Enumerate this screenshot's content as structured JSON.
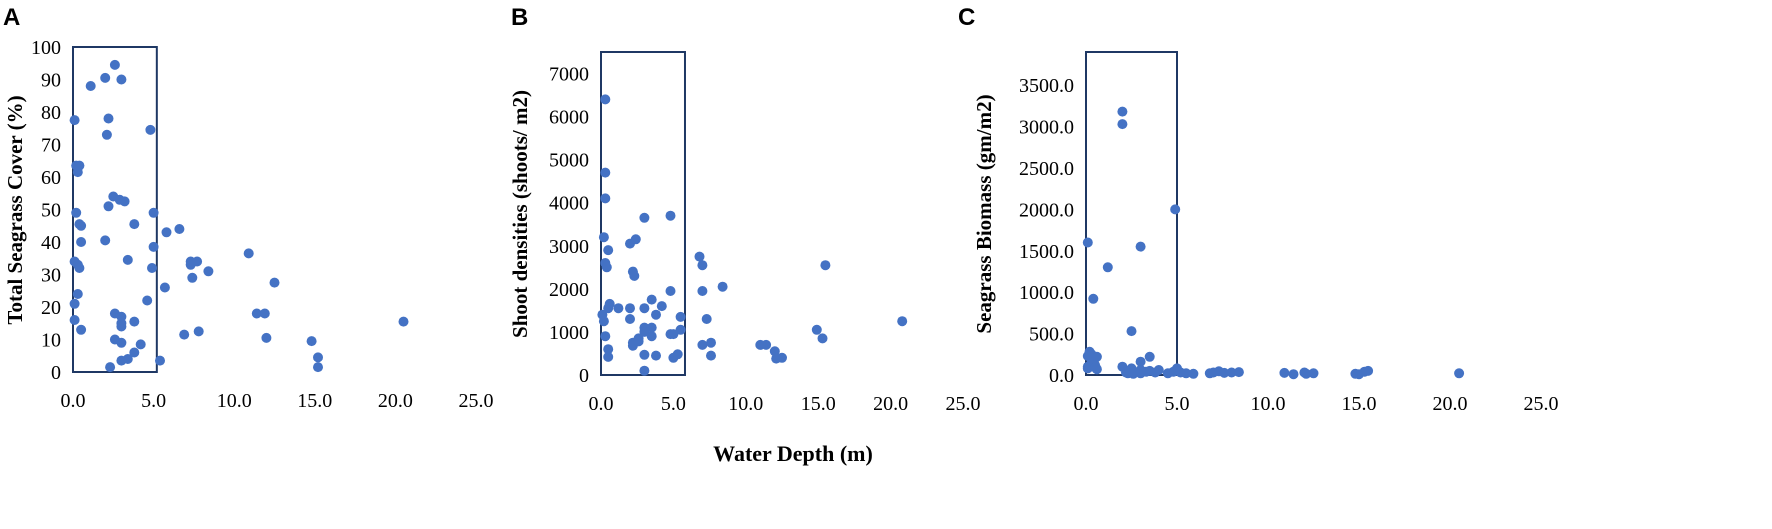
{
  "shared_xlabel": "Water Depth (m)",
  "colors": {
    "points": "#4472c4",
    "box": "#1f3864"
  },
  "chart_data": [
    {
      "type": "scatter",
      "panel": "A",
      "title": "",
      "xlabel": "Water Depth (m)",
      "ylabel": "Total Seagrass Cover (%)",
      "xlim": [
        0,
        25
      ],
      "ylim": [
        0,
        100
      ],
      "x_ticks": [
        "0.0",
        "5.0",
        "10.0",
        "15.0",
        "20.0",
        "25.0"
      ],
      "y_ticks": [
        "0",
        "10",
        "20",
        "30",
        "40",
        "50",
        "60",
        "70",
        "80",
        "90",
        "100"
      ],
      "highlight_box": {
        "x": [
          0,
          5.2
        ],
        "y": [
          0,
          100
        ]
      },
      "points": [
        [
          0.1,
          77.5
        ],
        [
          0.1,
          34
        ],
        [
          0.1,
          21
        ],
        [
          0.1,
          16
        ],
        [
          0.2,
          63.5
        ],
        [
          0.2,
          49
        ],
        [
          0.3,
          61.5
        ],
        [
          0.3,
          33
        ],
        [
          0.3,
          24
        ],
        [
          0.4,
          63.5
        ],
        [
          0.4,
          45.5
        ],
        [
          0.4,
          32
        ],
        [
          0.5,
          40
        ],
        [
          0.5,
          45
        ],
        [
          0.5,
          13
        ],
        [
          1.1,
          88
        ],
        [
          2.0,
          90.5
        ],
        [
          2.0,
          40.5
        ],
        [
          2.1,
          73
        ],
        [
          2.2,
          78
        ],
        [
          2.2,
          51
        ],
        [
          2.3,
          1.5
        ],
        [
          2.6,
          94.5
        ],
        [
          2.5,
          54
        ],
        [
          2.6,
          18
        ],
        [
          2.6,
          10
        ],
        [
          2.9,
          53
        ],
        [
          3.0,
          90
        ],
        [
          3.0,
          17
        ],
        [
          3.0,
          15
        ],
        [
          3.0,
          14
        ],
        [
          3.0,
          9
        ],
        [
          3.0,
          3.5
        ],
        [
          3.2,
          52.5
        ],
        [
          3.4,
          34.5
        ],
        [
          3.4,
          4
        ],
        [
          3.8,
          45.5
        ],
        [
          3.8,
          15.5
        ],
        [
          3.8,
          6
        ],
        [
          4.2,
          8.5
        ],
        [
          4.6,
          22
        ],
        [
          4.8,
          74.5
        ],
        [
          4.9,
          32
        ],
        [
          5.0,
          49
        ],
        [
          5.0,
          38.5
        ],
        [
          5.4,
          3.5
        ],
        [
          5.7,
          26
        ],
        [
          5.8,
          43
        ],
        [
          6.6,
          44
        ],
        [
          6.9,
          11.5
        ],
        [
          7.3,
          34
        ],
        [
          7.3,
          33
        ],
        [
          7.4,
          29
        ],
        [
          7.7,
          34
        ],
        [
          7.8,
          12.5
        ],
        [
          8.4,
          31
        ],
        [
          10.9,
          36.5
        ],
        [
          11.4,
          18
        ],
        [
          11.9,
          18
        ],
        [
          12.0,
          10.5
        ],
        [
          12.5,
          27.5
        ],
        [
          14.8,
          9.5
        ],
        [
          15.2,
          4.5
        ],
        [
          15.2,
          1.5
        ],
        [
          20.5,
          15.5
        ]
      ]
    },
    {
      "type": "scatter",
      "panel": "B",
      "title": "",
      "xlabel": "Water Depth (m)",
      "ylabel": "Shoot densities (shoots/ m2)",
      "xlim": [
        0,
        25
      ],
      "ylim": [
        0,
        7500
      ],
      "x_ticks": [
        "0.0",
        "5.0",
        "10.0",
        "15.0",
        "20.0",
        "25.0"
      ],
      "y_ticks": [
        "0",
        "1000",
        "2000",
        "3000",
        "4000",
        "5000",
        "6000",
        "7000"
      ],
      "highlight_box": {
        "x": [
          0,
          5.8
        ],
        "y": [
          0,
          7500
        ]
      },
      "points": [
        [
          0.1,
          1400
        ],
        [
          0.2,
          3200
        ],
        [
          0.2,
          1250
        ],
        [
          0.3,
          6400
        ],
        [
          0.3,
          4700
        ],
        [
          0.3,
          4100
        ],
        [
          0.3,
          2600
        ],
        [
          0.3,
          900
        ],
        [
          0.4,
          2500
        ],
        [
          0.5,
          2900
        ],
        [
          0.5,
          1550
        ],
        [
          0.6,
          1650
        ],
        [
          0.5,
          600
        ],
        [
          0.5,
          420
        ],
        [
          1.2,
          1550
        ],
        [
          2.0,
          3050
        ],
        [
          2.0,
          1550
        ],
        [
          2.0,
          1300
        ],
        [
          2.2,
          2400
        ],
        [
          2.4,
          3150
        ],
        [
          2.3,
          2300
        ],
        [
          2.2,
          750
        ],
        [
          2.2,
          680
        ],
        [
          2.6,
          850
        ],
        [
          2.6,
          780
        ],
        [
          3.0,
          3650
        ],
        [
          3.0,
          1550
        ],
        [
          3.0,
          1100
        ],
        [
          3.0,
          1000
        ],
        [
          3.0,
          470
        ],
        [
          3.0,
          100
        ],
        [
          3.5,
          1750
        ],
        [
          3.5,
          900
        ],
        [
          3.5,
          1100
        ],
        [
          3.8,
          1400
        ],
        [
          3.8,
          450
        ],
        [
          4.2,
          1600
        ],
        [
          4.8,
          3700
        ],
        [
          4.8,
          1950
        ],
        [
          4.8,
          950
        ],
        [
          5.0,
          950
        ],
        [
          5.0,
          400
        ],
        [
          5.3,
          480
        ],
        [
          5.5,
          1350
        ],
        [
          5.5,
          1050
        ],
        [
          6.8,
          2750
        ],
        [
          7.0,
          2550
        ],
        [
          7.0,
          1950
        ],
        [
          7.0,
          700
        ],
        [
          7.3,
          1300
        ],
        [
          7.6,
          750
        ],
        [
          7.6,
          450
        ],
        [
          8.4,
          2050
        ],
        [
          11.0,
          700
        ],
        [
          11.4,
          700
        ],
        [
          12.0,
          550
        ],
        [
          12.1,
          380
        ],
        [
          12.5,
          400
        ],
        [
          14.9,
          1050
        ],
        [
          15.3,
          850
        ],
        [
          15.5,
          2550
        ],
        [
          20.8,
          1250
        ]
      ]
    },
    {
      "type": "scatter",
      "panel": "C",
      "title": "",
      "xlabel": "Water Depth (m)",
      "ylabel": "Seagrass Biomass (gm/m2)",
      "xlim": [
        0,
        25
      ],
      "ylim": [
        0,
        3900
      ],
      "x_ticks": [
        "0.0",
        "5.0",
        "10.0",
        "15.0",
        "20.0",
        "25.0"
      ],
      "y_ticks": [
        "0.0",
        "500.0",
        "1000.0",
        "1500.0",
        "2000.0",
        "2500.0",
        "3000.0",
        "3500.0"
      ],
      "highlight_box": {
        "x": [
          0,
          5.0
        ],
        "y": [
          0,
          3900
        ]
      },
      "points": [
        [
          0.1,
          1600
        ],
        [
          0.1,
          230
        ],
        [
          0.1,
          100
        ],
        [
          0.1,
          80
        ],
        [
          0.2,
          280
        ],
        [
          0.3,
          250
        ],
        [
          0.3,
          200
        ],
        [
          0.3,
          150
        ],
        [
          0.4,
          920
        ],
        [
          0.5,
          120
        ],
        [
          0.5,
          90
        ],
        [
          0.6,
          220
        ],
        [
          0.6,
          70
        ],
        [
          1.2,
          1300
        ],
        [
          2.0,
          3180
        ],
        [
          2.0,
          3030
        ],
        [
          2.0,
          100
        ],
        [
          2.2,
          30
        ],
        [
          2.3,
          20
        ],
        [
          2.5,
          530
        ],
        [
          2.5,
          80
        ],
        [
          2.6,
          40
        ],
        [
          2.6,
          15
        ],
        [
          3.0,
          1550
        ],
        [
          3.0,
          160
        ],
        [
          3.0,
          60
        ],
        [
          3.0,
          20
        ],
        [
          3.3,
          40
        ],
        [
          3.5,
          220
        ],
        [
          3.5,
          50
        ],
        [
          3.8,
          30
        ],
        [
          4.0,
          60
        ],
        [
          4.5,
          20
        ],
        [
          4.8,
          40
        ],
        [
          4.9,
          2000
        ],
        [
          5.0,
          80
        ],
        [
          5.2,
          30
        ],
        [
          5.5,
          20
        ],
        [
          5.9,
          15
        ],
        [
          6.8,
          20
        ],
        [
          7.0,
          30
        ],
        [
          7.3,
          45
        ],
        [
          7.6,
          25
        ],
        [
          8.0,
          30
        ],
        [
          8.4,
          35
        ],
        [
          10.9,
          25
        ],
        [
          11.4,
          10
        ],
        [
          12.0,
          30
        ],
        [
          12.1,
          15
        ],
        [
          12.5,
          20
        ],
        [
          14.8,
          15
        ],
        [
          15.0,
          10
        ],
        [
          15.3,
          40
        ],
        [
          15.5,
          50
        ],
        [
          20.5,
          20
        ]
      ]
    }
  ]
}
